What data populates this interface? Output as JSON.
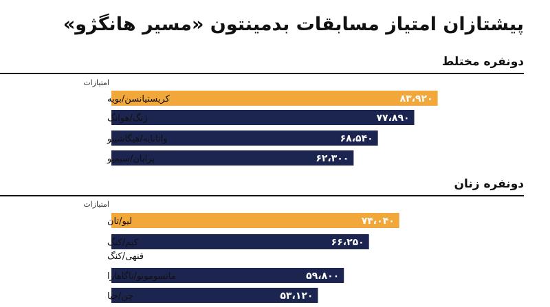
{
  "title": "پیشتازان امتیاز مسابقات بدمینتون «مسیر هانگژو»",
  "colors": {
    "highlight": "#F2A73B",
    "bar": "#1C2550",
    "text": "#111111"
  },
  "chart_data": [
    {
      "type": "bar",
      "orientation": "horizontal",
      "title": "دونفره مختلط",
      "value_header": "امتیازات",
      "categories": [
        "کریستیانسن/بویه",
        "ژنگ/هوانگ",
        "واتانابه/هیگاشینو",
        "پراپان/سیمیو"
      ],
      "values": [
        83920,
        77890,
        68540,
        62300
      ],
      "value_labels": [
        "۸۳،۹۲۰",
        "۷۷،۸۹۰",
        "۶۸،۵۴۰",
        "۶۲،۳۰۰"
      ],
      "highlight_index": 0,
      "xlim": [
        0,
        100000
      ]
    },
    {
      "type": "bar",
      "orientation": "horizontal",
      "title": "دونفره زنان",
      "value_header": "امتیازات",
      "categories": [
        "لیو/تان",
        "کیم/کنگ\nقنهی/کنگ",
        "ماتسوموتو/ناگاهارا",
        "چن/جیا"
      ],
      "values": [
        74040,
        66250,
        59800,
        53120
      ],
      "value_labels": [
        "۷۴،۰۴۰",
        "۶۶،۲۵۰",
        "۵۹،۸۰۰",
        "۵۳،۱۲۰"
      ],
      "highlight_index": 0,
      "xlim": [
        0,
        100000
      ]
    }
  ]
}
